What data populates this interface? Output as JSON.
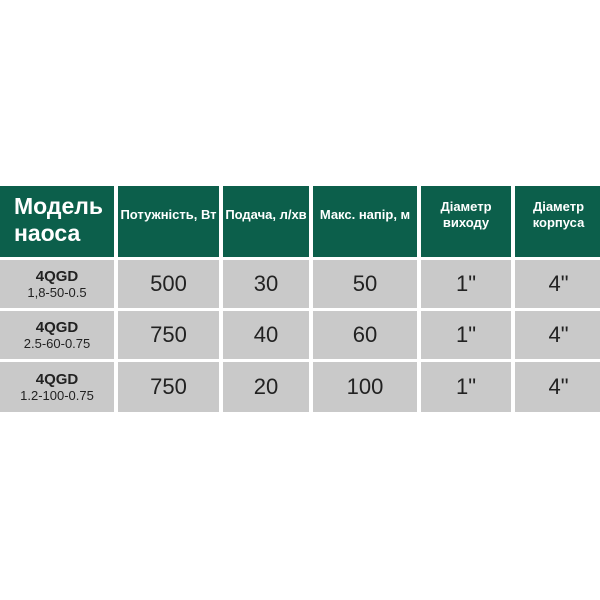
{
  "table": {
    "headers": [
      "Модель наоса",
      "Потужність, Вт",
      "Подача, л/хв",
      "Макс. напір, м",
      "Діаметр виходу",
      "Діаметр корпуса"
    ],
    "rows": [
      {
        "model": "4QGD",
        "variant": "1,8-50-0.5",
        "cells": [
          "500",
          "30",
          "50",
          "1\"",
          "4\""
        ]
      },
      {
        "model": "4QGD",
        "variant": "2.5-60-0.75",
        "cells": [
          "750",
          "40",
          "60",
          "1\"",
          "4\""
        ]
      },
      {
        "model": "4QGD",
        "variant": "1.2-100-0.75",
        "cells": [
          "750",
          "20",
          "100",
          "1\"",
          "4\""
        ]
      }
    ]
  },
  "colors": {
    "header": "#0c5f4b",
    "cell": "#c9c9c9"
  }
}
